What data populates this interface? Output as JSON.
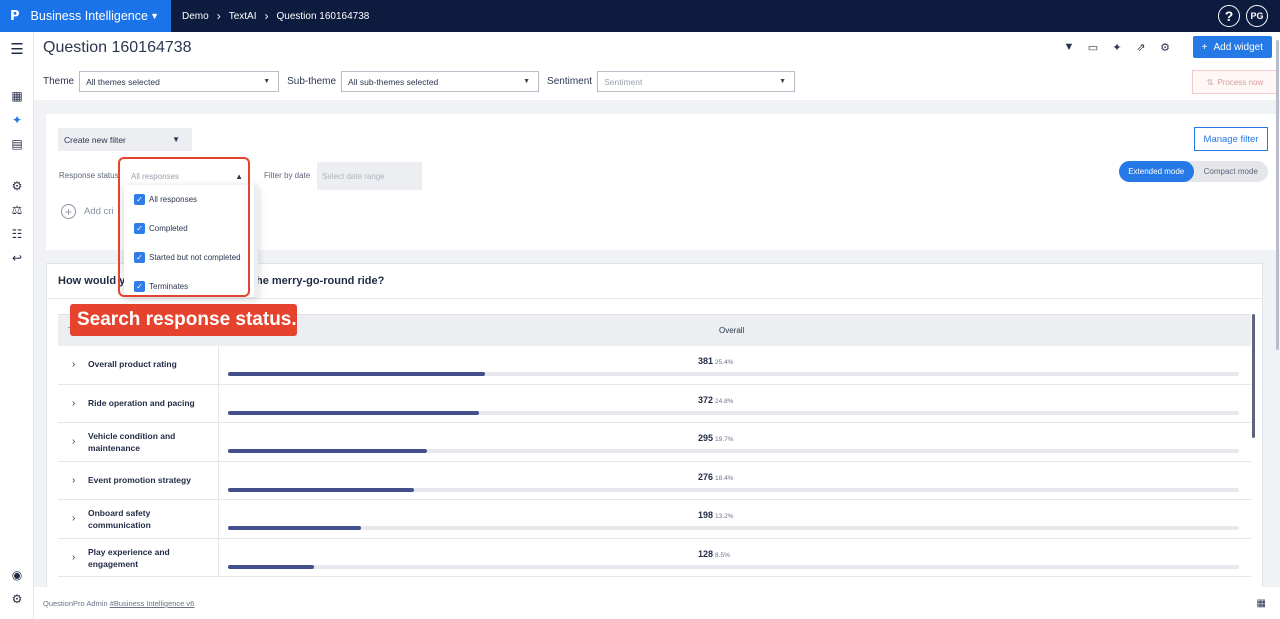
{
  "brand": {
    "logo": "P",
    "name": "Business Intelligence"
  },
  "breadcrumbs": [
    "Demo",
    "TextAI",
    "Question 160164738"
  ],
  "user": {
    "help": "?",
    "initials": "PG"
  },
  "page": {
    "title": "Question 160164738",
    "add_widget": "Add widget",
    "process_now": "Process now"
  },
  "filters": {
    "theme_label": "Theme",
    "theme_value": "All themes selected",
    "subtheme_label": "Sub-theme",
    "subtheme_value": "All sub-themes selected",
    "sentiment_label": "Sentiment",
    "sentiment_placeholder": "Sentiment"
  },
  "filter_panel": {
    "create_new_filter": "Create new filter",
    "response_status_label": "Response status",
    "response_status_placeholder": "All responses",
    "filter_by_date_label": "Filter by date",
    "date_placeholder": "Select date range",
    "add_criteria": "Add cri",
    "manage_filter": "Manage filter",
    "mode_extended": "Extended mode",
    "mode_compact": "Compact mode"
  },
  "dropdown": {
    "options": [
      {
        "label": "All responses",
        "checked": true
      },
      {
        "label": "Completed",
        "checked": true
      },
      {
        "label": "Started but not completed",
        "checked": true
      },
      {
        "label": "Terminates",
        "checked": true
      }
    ]
  },
  "callout": "Search response status.",
  "widget": {
    "title_start": "How would yo",
    "title_end": "he merry-go-round ride?",
    "col_first": "T",
    "col_overall": "Overall",
    "rows": [
      {
        "label": "Overall product rating",
        "count": "381",
        "pct": "25.4%",
        "fraction": 0.254
      },
      {
        "label": "Ride operation and pacing",
        "count": "372",
        "pct": "24.8%",
        "fraction": 0.248
      },
      {
        "label": "Vehicle condition and maintenance",
        "count": "295",
        "pct": "19.7%",
        "fraction": 0.197
      },
      {
        "label": "Event promotion strategy",
        "count": "276",
        "pct": "18.4%",
        "fraction": 0.184
      },
      {
        "label": "Onboard safety communication",
        "count": "198",
        "pct": "13.2%",
        "fraction": 0.132
      },
      {
        "label": "Play experience and engagement",
        "count": "128",
        "pct": "8.5%",
        "fraction": 0.085
      }
    ]
  },
  "footer": {
    "text": "QuestionPro Admin ",
    "link": "#Business Intelligence v6"
  },
  "colors": {
    "accent": "#2479e6",
    "topbar": "#0d1b3e",
    "callout": "#e5432d",
    "bar": "#44508c"
  }
}
